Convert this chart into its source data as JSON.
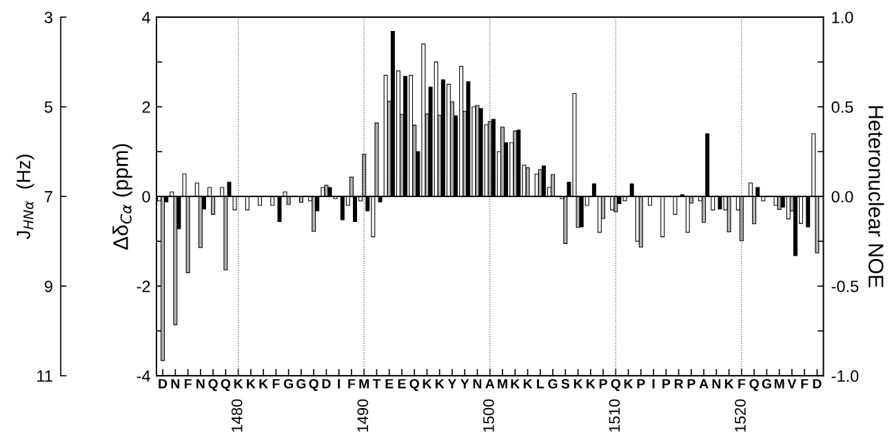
{
  "chart_data": {
    "type": "bar",
    "ylabel": "Δδ$_{Cα}$ (ppm)",
    "y2label": "Heteronuclear NOE",
    "y3label": "J$_{HNα}$  (Hz)",
    "categories": [
      "D",
      "N",
      "F",
      "N",
      "Q",
      "Q",
      "K",
      "K",
      "K",
      "F",
      "G",
      "G",
      "Q",
      "D",
      "I",
      "F",
      "M",
      "T",
      "E",
      "E",
      "Q",
      "K",
      "K",
      "Y",
      "Y",
      "N",
      "A",
      "M",
      "K",
      "K",
      "L",
      "G",
      "S",
      "K",
      "K",
      "P",
      "Q",
      "K",
      "P",
      "I",
      "P",
      "R",
      "P",
      "A",
      "N",
      "K",
      "F",
      "Q",
      "G",
      "M",
      "V",
      "F",
      "D"
    ],
    "x2lim": [
      1473.5,
      1526.5
    ],
    "x2ticks": [
      1480,
      1490,
      1500,
      1510,
      1520
    ],
    "ylim": [
      -4,
      4
    ],
    "yticks": [
      -4,
      {
        "value": -3,
        "label": null
      },
      -2,
      {
        "value": -1,
        "label": null
      },
      0,
      {
        "value": 1,
        "label": null
      },
      2,
      {
        "value": 3,
        "label": null
      },
      4
    ],
    "y2lim": [
      -1,
      1
    ],
    "y2ticks": [
      {
        "value": -1,
        "label": "-1.0"
      },
      {
        "value": -0.75,
        "label": null
      },
      {
        "value": -0.5,
        "label": "-0.5"
      },
      {
        "value": -0.25,
        "label": null
      },
      {
        "value": 0,
        "label": "0.0"
      },
      {
        "value": 0.25,
        "label": null
      },
      {
        "value": 0.5,
        "label": "0.5"
      },
      {
        "value": 0.75,
        "label": null
      },
      {
        "value": 1,
        "label": "1.0"
      }
    ],
    "y3lim": [
      11,
      3
    ],
    "y3ticks": [
      3,
      5,
      7,
      9,
      11
    ],
    "grid": "x",
    "ref_lines": [
      {
        "axis": "y3",
        "value": 7,
        "color": "#000000"
      }
    ],
    "series": [
      {
        "color": "#ffffff",
        "axis": "y3",
        "base": [
          7,
          7,
          7,
          7,
          7,
          7,
          7,
          7,
          7,
          7,
          7,
          null,
          7,
          7,
          7,
          7,
          7,
          7,
          7,
          7,
          7,
          7,
          7,
          7,
          7,
          7,
          7,
          7,
          7,
          7,
          7,
          7,
          7,
          7,
          7,
          7,
          7,
          7,
          7,
          7,
          7,
          7,
          7,
          7,
          7,
          7,
          7,
          7,
          7,
          7,
          7,
          7,
          7
        ],
        "values": [
          0.1,
          -0.1,
          -0.5,
          -0.3,
          -0.2,
          -0.2,
          0.3,
          0.3,
          0.2,
          0.2,
          -0.1,
          null,
          0.1,
          -0.2,
          0.05,
          0.2,
          0.1,
          0.9,
          -2.7,
          -2.8,
          -2.7,
          -3.4,
          -3.0,
          -2.5,
          -2.9,
          -2.0,
          -1.6,
          -1.0,
          -1.2,
          -0.7,
          -0.5,
          -0.2,
          0.05,
          -2.3,
          0.2,
          0.8,
          0.3,
          0.1,
          1.0,
          0.2,
          0.9,
          0.4,
          0.8,
          0.1,
          0.3,
          0.3,
          0.3,
          -0.3,
          0.1,
          0.2,
          0.5,
          0.6,
          -1.4
        ]
      },
      {
        "color": "#b4b4b4",
        "axis": "y",
        "values": [
          -3.66,
          -2.86,
          -1.7,
          -1.14,
          -0.4,
          -1.64,
          null,
          null,
          null,
          null,
          -0.18,
          -0.13,
          -0.78,
          0.25,
          null,
          0.43,
          0.94,
          1.64,
          2.12,
          1.83,
          1.59,
          1.84,
          1.81,
          2.11,
          1.9,
          2.03,
          1.67,
          1.55,
          1.46,
          0.64,
          0.6,
          0.49,
          -1.05,
          -0.69,
          null,
          -0.49,
          -0.34,
          null,
          -1.13,
          null,
          null,
          null,
          -0.15,
          -0.58,
          null,
          -0.79,
          -0.99,
          -0.61,
          null,
          -0.29,
          -0.32,
          null,
          -1.26
        ]
      },
      {
        "color": "#000000",
        "axis": "y2",
        "values": [
          -0.03,
          -0.18,
          null,
          -0.07,
          null,
          0.08,
          null,
          null,
          null,
          -0.14,
          null,
          null,
          -0.08,
          0.05,
          -0.13,
          -0.14,
          -0.08,
          -0.03,
          0.92,
          0.67,
          0.25,
          0.61,
          0.65,
          0.45,
          0.64,
          0.49,
          0.43,
          0.3,
          0.37,
          null,
          0.17,
          null,
          0.08,
          -0.17,
          0.07,
          null,
          -0.04,
          0.07,
          null,
          null,
          null,
          0.01,
          null,
          0.35,
          -0.07,
          null,
          null,
          0.05,
          null,
          -0.06,
          -0.33,
          -0.17,
          null
        ]
      }
    ]
  }
}
